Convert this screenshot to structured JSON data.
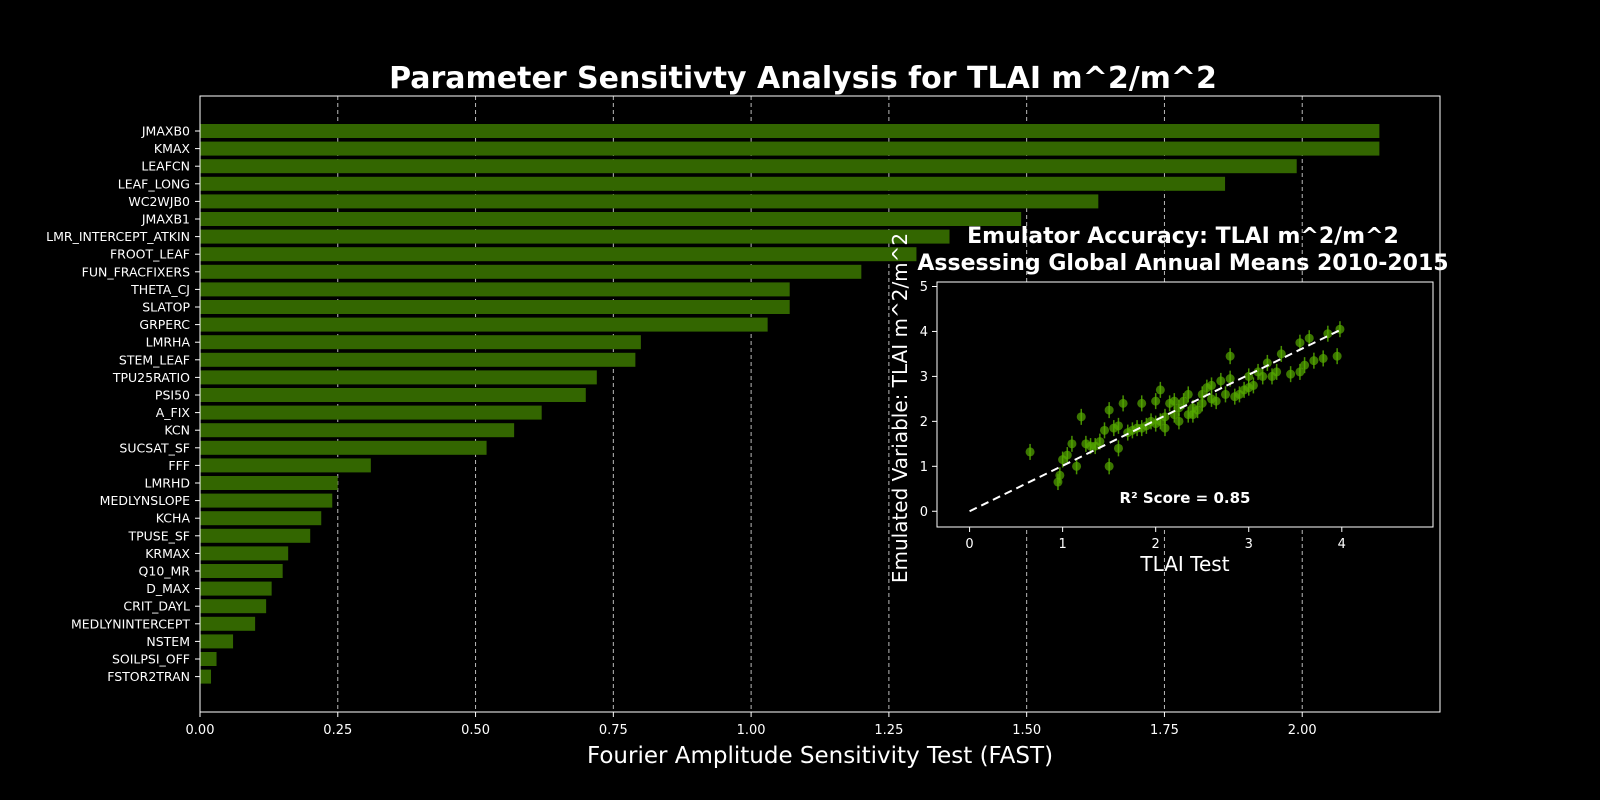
{
  "chart_data": [
    {
      "type": "bar",
      "orientation": "horizontal",
      "title": "Parameter Sensitivty Analysis for TLAI m^2/m^2",
      "xlabel": "Fourier Amplitude Sensitivity Test (FAST)",
      "ylabel": "",
      "xlim": [
        0,
        2.25
      ],
      "xticks": [
        "0.00",
        "0.25",
        "0.50",
        "0.75",
        "1.00",
        "1.25",
        "1.50",
        "1.75",
        "2.00"
      ],
      "grid": "x-dashed",
      "bar_color": "#336600",
      "categories": [
        "JMAXB0",
        "KMAX",
        "LEAFCN",
        "LEAF_LONG",
        "WC2WJB0",
        "JMAXB1",
        "LMR_INTERCEPT_ATKIN",
        "FROOT_LEAF",
        "FUN_FRACFIXERS",
        "THETA_CJ",
        "SLATOP",
        "GRPERC",
        "LMRHA",
        "STEM_LEAF",
        "TPU25RATIO",
        "PSI50",
        "A_FIX",
        "KCN",
        "SUCSAT_SF",
        "FFF",
        "LMRHD",
        "MEDLYNSLOPE",
        "KCHA",
        "TPUSE_SF",
        "KRMAX",
        "Q10_MR",
        "D_MAX",
        "CRIT_DAYL",
        "MEDLYNINTERCEPT",
        "NSTEM",
        "SOILPSI_OFF",
        "FSTOR2TRAN"
      ],
      "values": [
        2.14,
        2.14,
        1.99,
        1.86,
        1.63,
        1.49,
        1.36,
        1.3,
        1.2,
        1.07,
        1.07,
        1.03,
        0.8,
        0.79,
        0.72,
        0.7,
        0.62,
        0.57,
        0.52,
        0.31,
        0.25,
        0.24,
        0.22,
        0.2,
        0.16,
        0.15,
        0.13,
        0.12,
        0.1,
        0.06,
        0.03,
        0.02
      ]
    },
    {
      "type": "scatter",
      "title": "Emulator Accuracy: TLAI m^2/m^2",
      "subtitle": "Assessing Global Annual Means 2010-2015",
      "xlabel": "TLAI Test",
      "ylabel": "Emulated Variable: TLAI m^2/m^2",
      "xlim": [
        -0.35,
        4.98
      ],
      "ylim": [
        -0.35,
        5.1
      ],
      "xticks": [
        "0",
        "1",
        "2",
        "3",
        "4"
      ],
      "yticks": [
        "0",
        "1",
        "2",
        "3",
        "4",
        "5"
      ],
      "point_color": "#55aa00",
      "fit_line": [
        [
          0,
          0
        ],
        [
          4,
          4.05
        ]
      ],
      "annotation": "R² Score = 0.85",
      "points": [
        [
          0.65,
          1.32
        ],
        [
          0.95,
          0.65
        ],
        [
          0.97,
          0.8
        ],
        [
          1.0,
          1.15
        ],
        [
          1.05,
          1.25
        ],
        [
          1.1,
          1.5
        ],
        [
          1.15,
          1.0
        ],
        [
          1.2,
          2.1
        ],
        [
          1.25,
          1.5
        ],
        [
          1.3,
          1.45
        ],
        [
          1.35,
          1.45
        ],
        [
          1.4,
          1.55
        ],
        [
          1.45,
          1.8
        ],
        [
          1.5,
          1.0
        ],
        [
          1.5,
          2.25
        ],
        [
          1.55,
          1.85
        ],
        [
          1.6,
          1.4
        ],
        [
          1.6,
          1.9
        ],
        [
          1.65,
          2.4
        ],
        [
          1.7,
          1.75
        ],
        [
          1.75,
          1.8
        ],
        [
          1.8,
          1.85
        ],
        [
          1.85,
          1.85
        ],
        [
          1.85,
          2.4
        ],
        [
          1.9,
          1.9
        ],
        [
          1.95,
          2.0
        ],
        [
          2.0,
          2.45
        ],
        [
          2.0,
          1.95
        ],
        [
          2.05,
          2.7
        ],
        [
          2.05,
          2.0
        ],
        [
          2.1,
          1.85
        ],
        [
          2.1,
          2.1
        ],
        [
          2.15,
          2.4
        ],
        [
          2.2,
          2.15
        ],
        [
          2.2,
          2.45
        ],
        [
          2.25,
          2.0
        ],
        [
          2.25,
          2.3
        ],
        [
          2.3,
          2.45
        ],
        [
          2.35,
          2.6
        ],
        [
          2.35,
          2.15
        ],
        [
          2.4,
          2.3
        ],
        [
          2.4,
          2.15
        ],
        [
          2.45,
          2.25
        ],
        [
          2.5,
          2.6
        ],
        [
          2.5,
          2.4
        ],
        [
          2.55,
          2.75
        ],
        [
          2.6,
          2.5
        ],
        [
          2.6,
          2.8
        ],
        [
          2.65,
          2.45
        ],
        [
          2.7,
          2.9
        ],
        [
          2.75,
          2.6
        ],
        [
          2.8,
          3.45
        ],
        [
          2.8,
          2.95
        ],
        [
          2.85,
          2.55
        ],
        [
          2.9,
          2.6
        ],
        [
          2.95,
          2.7
        ],
        [
          3.0,
          3.0
        ],
        [
          3.0,
          2.75
        ],
        [
          3.05,
          2.8
        ],
        [
          3.1,
          3.1
        ],
        [
          3.15,
          3.0
        ],
        [
          3.2,
          3.3
        ],
        [
          3.25,
          3.0
        ],
        [
          3.3,
          3.1
        ],
        [
          3.35,
          3.5
        ],
        [
          3.45,
          3.05
        ],
        [
          3.55,
          3.1
        ],
        [
          3.55,
          3.75
        ],
        [
          3.6,
          3.25
        ],
        [
          3.65,
          3.85
        ],
        [
          3.7,
          3.35
        ],
        [
          3.8,
          3.4
        ],
        [
          3.85,
          3.95
        ],
        [
          3.95,
          3.45
        ],
        [
          3.98,
          4.05
        ]
      ]
    }
  ]
}
